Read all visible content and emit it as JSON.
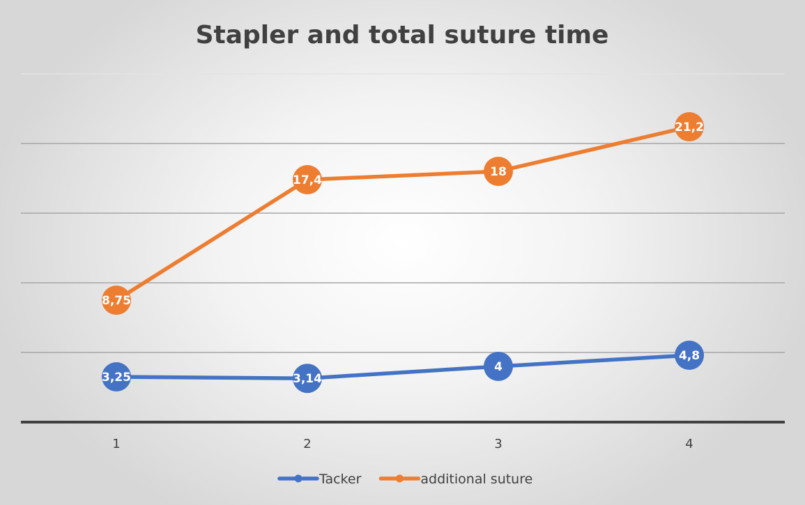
{
  "chart_data": {
    "type": "line",
    "title": "Stapler and total suture time",
    "xlabel": "",
    "ylabel": "",
    "x": [
      "1",
      "2",
      "3",
      "4"
    ],
    "ylim": [
      0,
      25
    ],
    "y_grid_step": 5,
    "grid": true,
    "legend_position": "bottom",
    "series": [
      {
        "name": "Tacker",
        "values": [
          3.25,
          3.14,
          4,
          4.8
        ],
        "labels": [
          "3,25",
          "3,14",
          "4",
          "4,8"
        ],
        "color": "#4472C4"
      },
      {
        "name": "additional suture",
        "values": [
          8.75,
          17.4,
          18,
          21.2
        ],
        "labels": [
          "8,75",
          "17,4",
          "18",
          "21,2"
        ],
        "color": "#ED7D31"
      }
    ]
  }
}
